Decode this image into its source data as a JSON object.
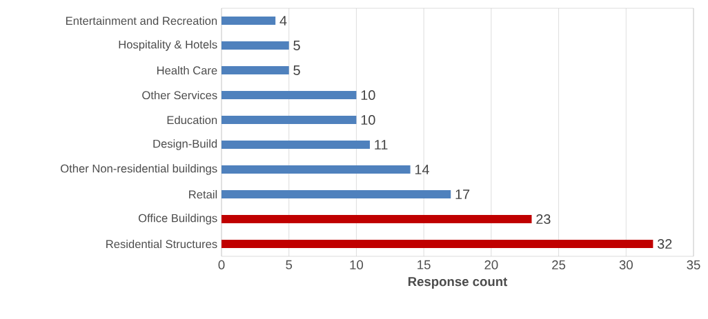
{
  "chart_data": {
    "type": "bar",
    "orientation": "horizontal",
    "categories": [
      "Entertainment and Recreation",
      "Hospitality & Hotels",
      "Health Care",
      "Other Services",
      "Education",
      "Design-Build",
      "Other Non-residential buildings",
      "Retail",
      "Office Buildings",
      "Residential Structures"
    ],
    "values": [
      4,
      5,
      5,
      10,
      10,
      11,
      14,
      17,
      23,
      32
    ],
    "colors": [
      "#4f81bd",
      "#4f81bd",
      "#4f81bd",
      "#4f81bd",
      "#4f81bd",
      "#4f81bd",
      "#4f81bd",
      "#4f81bd",
      "#c00000",
      "#c00000"
    ],
    "xlim": [
      0,
      35
    ],
    "xticks": [
      0,
      5,
      10,
      15,
      20,
      25,
      30,
      35
    ],
    "xlabel": "Response count",
    "grid": "x",
    "data_labels": true
  }
}
